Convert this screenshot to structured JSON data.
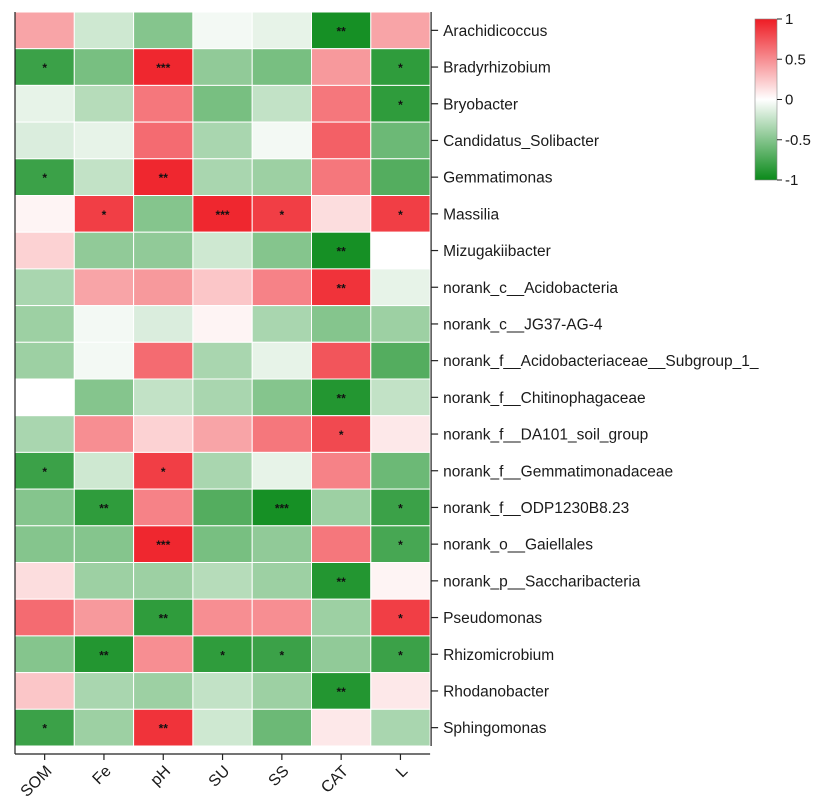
{
  "chart_data": {
    "type": "heatmap",
    "columns": [
      "SOM",
      "Fe",
      "pH",
      "SU",
      "SS",
      "CAT",
      "L"
    ],
    "rows": [
      "Arachidicoccus",
      "Bradyrhizobium",
      "Bryobacter",
      "Candidatus_Solibacter",
      "Gemmatimonas",
      "Massilia",
      "Mizugakiibacter",
      "norank_c__Acidobacteria",
      "norank_c__JG37-AG-4",
      "norank_f__Acidobacteriaceae__Subgroup_1_",
      "norank_f__Chitinophagaceae",
      "norank_f__DA101_soil_group",
      "norank_f__Gemmatimonadaceae",
      "norank_f__ODP1230B8.23",
      "norank_o__Gaiellales",
      "norank_p__Saccharibacteria",
      "Pseudomonas",
      "Rhizomicrobium",
      "Rhodanobacter",
      "Sphingomonas"
    ],
    "values": [
      [
        0.4,
        -0.2,
        -0.5,
        -0.05,
        -0.1,
        -0.95,
        0.4
      ],
      [
        -0.8,
        -0.55,
        0.95,
        -0.45,
        -0.55,
        0.45,
        -0.85
      ],
      [
        -0.1,
        -0.3,
        0.6,
        -0.55,
        -0.25,
        0.6,
        -0.85
      ],
      [
        -0.15,
        -0.1,
        0.65,
        -0.35,
        -0.05,
        0.7,
        -0.6
      ],
      [
        -0.8,
        -0.25,
        0.95,
        -0.35,
        -0.4,
        0.6,
        -0.7
      ],
      [
        0.05,
        0.85,
        -0.5,
        0.95,
        0.85,
        0.15,
        0.85
      ],
      [
        0.2,
        -0.45,
        -0.45,
        -0.2,
        -0.5,
        -0.95,
        0.0
      ],
      [
        -0.35,
        0.4,
        0.45,
        0.25,
        0.55,
        0.9,
        -0.1
      ],
      [
        -0.4,
        -0.05,
        -0.15,
        0.05,
        -0.35,
        -0.5,
        -0.4
      ],
      [
        -0.4,
        -0.05,
        0.65,
        -0.35,
        -0.1,
        0.75,
        -0.7
      ],
      [
        0.0,
        -0.5,
        -0.25,
        -0.35,
        -0.5,
        -0.9,
        -0.25
      ],
      [
        -0.35,
        0.5,
        0.2,
        0.4,
        0.6,
        0.8,
        0.1
      ],
      [
        -0.8,
        -0.2,
        0.85,
        -0.35,
        -0.1,
        0.55,
        -0.6
      ],
      [
        -0.5,
        -0.85,
        0.55,
        -0.7,
        -0.95,
        -0.4,
        -0.8
      ],
      [
        -0.5,
        -0.5,
        0.95,
        -0.55,
        -0.45,
        0.6,
        -0.75
      ],
      [
        0.15,
        -0.4,
        -0.4,
        -0.3,
        -0.4,
        -0.9,
        0.05
      ],
      [
        0.65,
        0.45,
        -0.85,
        0.5,
        0.5,
        -0.4,
        0.85
      ],
      [
        -0.5,
        -0.9,
        0.5,
        -0.85,
        -0.8,
        -0.45,
        -0.8
      ],
      [
        0.25,
        -0.35,
        -0.4,
        -0.25,
        -0.4,
        -0.9,
        0.1
      ],
      [
        -0.8,
        -0.4,
        0.9,
        -0.2,
        -0.6,
        0.1,
        -0.35
      ]
    ],
    "significance": [
      [
        "",
        "",
        "",
        "",
        "",
        "**",
        ""
      ],
      [
        "*",
        "",
        "***",
        "",
        "",
        "",
        "*"
      ],
      [
        "",
        "",
        "",
        "",
        "",
        "",
        "*"
      ],
      [
        "",
        "",
        "",
        "",
        "",
        "",
        ""
      ],
      [
        "*",
        "",
        "**",
        "",
        "",
        "",
        ""
      ],
      [
        "",
        "*",
        "",
        "***",
        "*",
        "",
        "*"
      ],
      [
        "",
        "",
        "",
        "",
        "",
        "**",
        ""
      ],
      [
        "",
        "",
        "",
        "",
        "",
        "**",
        ""
      ],
      [
        "",
        "",
        "",
        "",
        "",
        "",
        ""
      ],
      [
        "",
        "",
        "",
        "",
        "",
        "",
        ""
      ],
      [
        "",
        "",
        "",
        "",
        "",
        "**",
        ""
      ],
      [
        "",
        "",
        "",
        "",
        "",
        "*",
        ""
      ],
      [
        "*",
        "",
        "*",
        "",
        "",
        "",
        ""
      ],
      [
        "",
        "**",
        "",
        "",
        "***",
        "",
        "*"
      ],
      [
        "",
        "",
        "***",
        "",
        "",
        "",
        "*"
      ],
      [
        "",
        "",
        "",
        "",
        "",
        "**",
        ""
      ],
      [
        "",
        "",
        "**",
        "",
        "",
        "",
        "*"
      ],
      [
        "",
        "**",
        "",
        "*",
        "*",
        "",
        "*"
      ],
      [
        "",
        "",
        "",
        "",
        "",
        "**",
        ""
      ],
      [
        "*",
        "",
        "**",
        "",
        "",
        "",
        ""
      ]
    ],
    "color_scale": {
      "min": -1,
      "max": 1,
      "ticks": [
        "1",
        "0.5",
        "0",
        "-0.5",
        "-1"
      ],
      "low_color": "#0a8a1a",
      "mid_color": "#ffffff",
      "high_color": "#ee1c24"
    },
    "legend_position": "top-right",
    "grid": true
  }
}
